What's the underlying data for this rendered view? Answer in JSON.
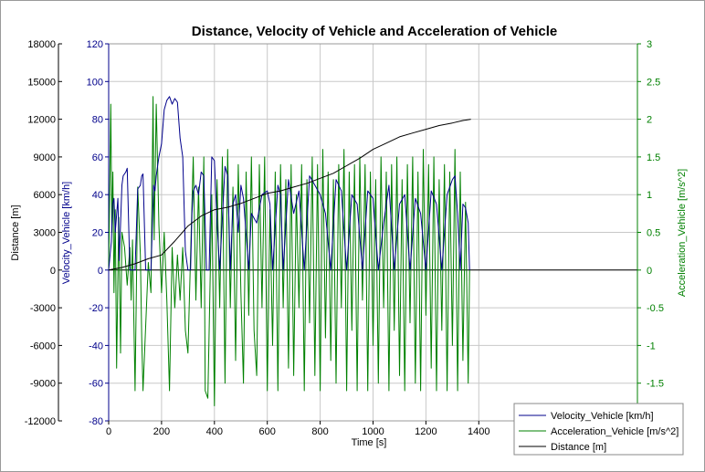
{
  "chart_data": {
    "type": "line",
    "title": "Distance, Velocity of Vehicle and Acceleration of Vehicle",
    "xlabel": "Time [s]",
    "xlim": [
      0,
      2000
    ],
    "xticks": [
      0,
      200,
      400,
      600,
      800,
      1000,
      1200,
      1400
    ],
    "grid": true,
    "legend_position": "bottom-right",
    "axes": {
      "distance": {
        "label": "Distance [m]",
        "side": "left-outer",
        "color": "#000000",
        "ylim": [
          -12000,
          18000
        ],
        "ticks": [
          -12000,
          -9000,
          -6000,
          -3000,
          0,
          3000,
          6000,
          9000,
          12000,
          15000,
          18000
        ]
      },
      "velocity": {
        "label": "Velocity_Vehicle [km/h]",
        "side": "left-inner",
        "color": "#00008b",
        "ylim": [
          -80,
          120
        ],
        "ticks": [
          -80,
          -60,
          -40,
          -20,
          0,
          20,
          40,
          60,
          80,
          100,
          120
        ]
      },
      "acceleration": {
        "label": "Acceleration_Vehicle [m/s^2]",
        "side": "right",
        "color": "#008000",
        "ylim": [
          -2,
          3
        ],
        "ticks": [
          -1.5,
          -1,
          -0.5,
          0,
          0.5,
          1,
          1.5,
          2,
          2.5,
          3
        ]
      }
    },
    "series": [
      {
        "name": "Velocity_Vehicle [km/h]",
        "axis": "velocity",
        "color": "#00008b",
        "x": [
          0,
          10,
          15,
          20,
          25,
          35,
          40,
          50,
          55,
          65,
          70,
          80,
          100,
          110,
          120,
          125,
          130,
          140,
          160,
          170,
          175,
          180,
          190,
          200,
          210,
          220,
          230,
          240,
          250,
          260,
          270,
          280,
          290,
          300,
          310,
          315,
          320,
          330,
          340,
          350,
          360,
          370,
          380,
          390,
          400,
          410,
          420,
          440,
          450,
          460,
          470,
          480,
          490,
          500,
          510,
          530,
          540,
          560,
          580,
          600,
          610,
          620,
          640,
          650,
          660,
          680,
          700,
          720,
          740,
          760,
          780,
          800,
          820,
          840,
          860,
          880,
          900,
          920,
          940,
          960,
          980,
          1000,
          1020,
          1040,
          1060,
          1080,
          1100,
          1120,
          1140,
          1160,
          1180,
          1200,
          1220,
          1240,
          1260,
          1280,
          1300,
          1310,
          1320,
          1330,
          1340,
          1350,
          1360,
          1365
        ],
        "values": [
          0,
          15,
          35,
          38,
          20,
          38,
          5,
          45,
          50,
          52,
          54,
          0,
          0,
          43,
          45,
          50,
          51,
          0,
          0,
          45,
          42,
          50,
          60,
          67,
          85,
          90,
          92,
          88,
          91,
          89,
          70,
          60,
          10,
          0,
          0,
          30,
          42,
          45,
          40,
          52,
          50,
          0,
          0,
          60,
          58,
          25,
          0,
          55,
          50,
          0,
          35,
          40,
          20,
          45,
          38,
          0,
          30,
          25,
          40,
          42,
          35,
          0,
          45,
          40,
          0,
          48,
          30,
          42,
          0,
          50,
          45,
          40,
          30,
          0,
          48,
          42,
          0,
          40,
          35,
          0,
          42,
          38,
          0,
          25,
          45,
          0,
          35,
          40,
          0,
          38,
          30,
          0,
          42,
          35,
          0,
          40,
          48,
          50,
          30,
          0,
          35,
          33,
          25,
          0
        ]
      },
      {
        "name": "Acceleration_Vehicle [m/s^2]",
        "axis": "acceleration",
        "color": "#008000",
        "x": [
          0,
          8,
          12,
          16,
          20,
          25,
          30,
          38,
          45,
          50,
          60,
          70,
          80,
          85,
          90,
          100,
          110,
          120,
          125,
          130,
          150,
          160,
          168,
          172,
          180,
          190,
          200,
          210,
          220,
          230,
          240,
          250,
          260,
          270,
          280,
          290,
          300,
          320,
          330,
          340,
          350,
          360,
          365,
          375,
          390,
          400,
          410,
          420,
          430,
          440,
          450,
          460,
          470,
          480,
          490,
          500,
          510,
          520,
          530,
          540,
          550,
          560,
          570,
          580,
          590,
          600,
          610,
          620,
          630,
          640,
          650,
          660,
          670,
          680,
          690,
          700,
          710,
          720,
          730,
          740,
          750,
          760,
          770,
          780,
          790,
          800,
          810,
          820,
          830,
          840,
          850,
          860,
          870,
          880,
          890,
          900,
          910,
          920,
          930,
          940,
          950,
          960,
          970,
          980,
          990,
          1000,
          1010,
          1020,
          1030,
          1040,
          1050,
          1060,
          1070,
          1080,
          1090,
          1100,
          1110,
          1120,
          1130,
          1140,
          1150,
          1160,
          1170,
          1180,
          1190,
          1200,
          1210,
          1220,
          1230,
          1240,
          1250,
          1260,
          1270,
          1280,
          1290,
          1300,
          1310,
          1320,
          1330,
          1340,
          1350,
          1360,
          1365
        ],
        "values": [
          0,
          2.2,
          0.5,
          1.3,
          -0.3,
          0.8,
          -1.3,
          0.7,
          -1.1,
          0.5,
          0.3,
          -0.2,
          0.3,
          -0.4,
          0.4,
          -1.6,
          1.1,
          0.2,
          -0.9,
          -1.6,
          0.1,
          -0.3,
          2.3,
          0.4,
          2.2,
          0.6,
          -0.3,
          0.5,
          -0.4,
          -1.6,
          0.3,
          -0.5,
          0.2,
          -0.4,
          0.3,
          -0.8,
          -1.1,
          1.5,
          -0.4,
          1.1,
          -0.5,
          1.5,
          -1.6,
          -1.7,
          1.0,
          -1.8,
          1.2,
          -0.5,
          1.5,
          -1.5,
          1.6,
          -0.5,
          1.1,
          -1.2,
          1.4,
          -0.3,
          -1.5,
          1.3,
          -0.6,
          1.5,
          -0.8,
          -1.4,
          1.4,
          -0.5,
          1.5,
          -1.6,
          0.8,
          -1.0,
          1.3,
          -1.6,
          1.4,
          -0.5,
          1.2,
          -1.3,
          1.4,
          -1.4,
          1.0,
          -0.5,
          1.4,
          -1.6,
          1.2,
          -0.7,
          1.5,
          -1.4,
          1.4,
          -1.6,
          1.6,
          -0.9,
          1.3,
          -1.2,
          1.2,
          -1.5,
          1.4,
          -0.5,
          1.6,
          -1.6,
          1.3,
          -0.8,
          1.4,
          -1.6,
          1.5,
          -0.4,
          1.4,
          -1.6,
          1.3,
          -1.0,
          1.2,
          -1.5,
          1.5,
          -0.5,
          1.3,
          -1.6,
          1.4,
          -0.8,
          1.5,
          -1.4,
          1.2,
          -1.6,
          1.4,
          -0.7,
          1.5,
          -1.5,
          1.3,
          -1.6,
          1.6,
          -0.6,
          1.4,
          -1.3,
          1.5,
          -1.6,
          1.2,
          -0.8,
          1.4,
          -1.6,
          1.3,
          -1.0,
          1.6,
          -1.6,
          1.3,
          -1.2,
          0.9,
          -1.5,
          0.0
        ]
      },
      {
        "name": "Distance [m]",
        "axis": "distance",
        "color": "#000000",
        "x": [
          0,
          50,
          100,
          150,
          200,
          250,
          300,
          350,
          400,
          450,
          500,
          550,
          600,
          650,
          700,
          750,
          800,
          850,
          900,
          950,
          1000,
          1050,
          1100,
          1150,
          1200,
          1250,
          1300,
          1340,
          1370
        ],
        "values": [
          0,
          200,
          500,
          900,
          1200,
          2300,
          3500,
          4300,
          4800,
          5000,
          5300,
          5700,
          6100,
          6300,
          6600,
          6900,
          7300,
          7700,
          8300,
          8900,
          9600,
          10100,
          10600,
          10900,
          11200,
          11500,
          11700,
          11900,
          12000
        ]
      }
    ]
  }
}
